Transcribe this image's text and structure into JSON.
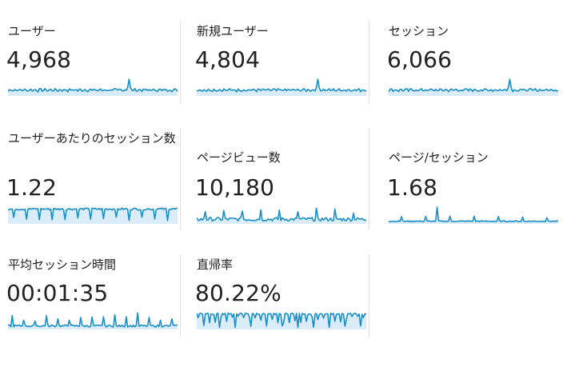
{
  "accent_color": "#1a8fc7",
  "fill_color": "#d9ecf7",
  "metrics": [
    {
      "label": "ユーザー",
      "value": "4,968",
      "spark": "noise_spike"
    },
    {
      "label": "新規ユーザー",
      "value": "4,804",
      "spark": "noise_spike"
    },
    {
      "label": "セッション",
      "value": "6,066",
      "spark": "noise_spike"
    },
    {
      "label": "ユーザーあたりのセッション数",
      "value": "1.22",
      "spark": "high_dips"
    },
    {
      "label": "ページビュー数",
      "value": "10,180",
      "spark": "medium_noise"
    },
    {
      "label": "ページ/セッション",
      "value": "1.68",
      "spark": "low_flat"
    },
    {
      "label": "平均セッション時間",
      "value": "00:01:35",
      "spark": "low_spikes"
    },
    {
      "label": "直帰率",
      "value": "80.22%",
      "spark": "full_dips"
    }
  ]
}
